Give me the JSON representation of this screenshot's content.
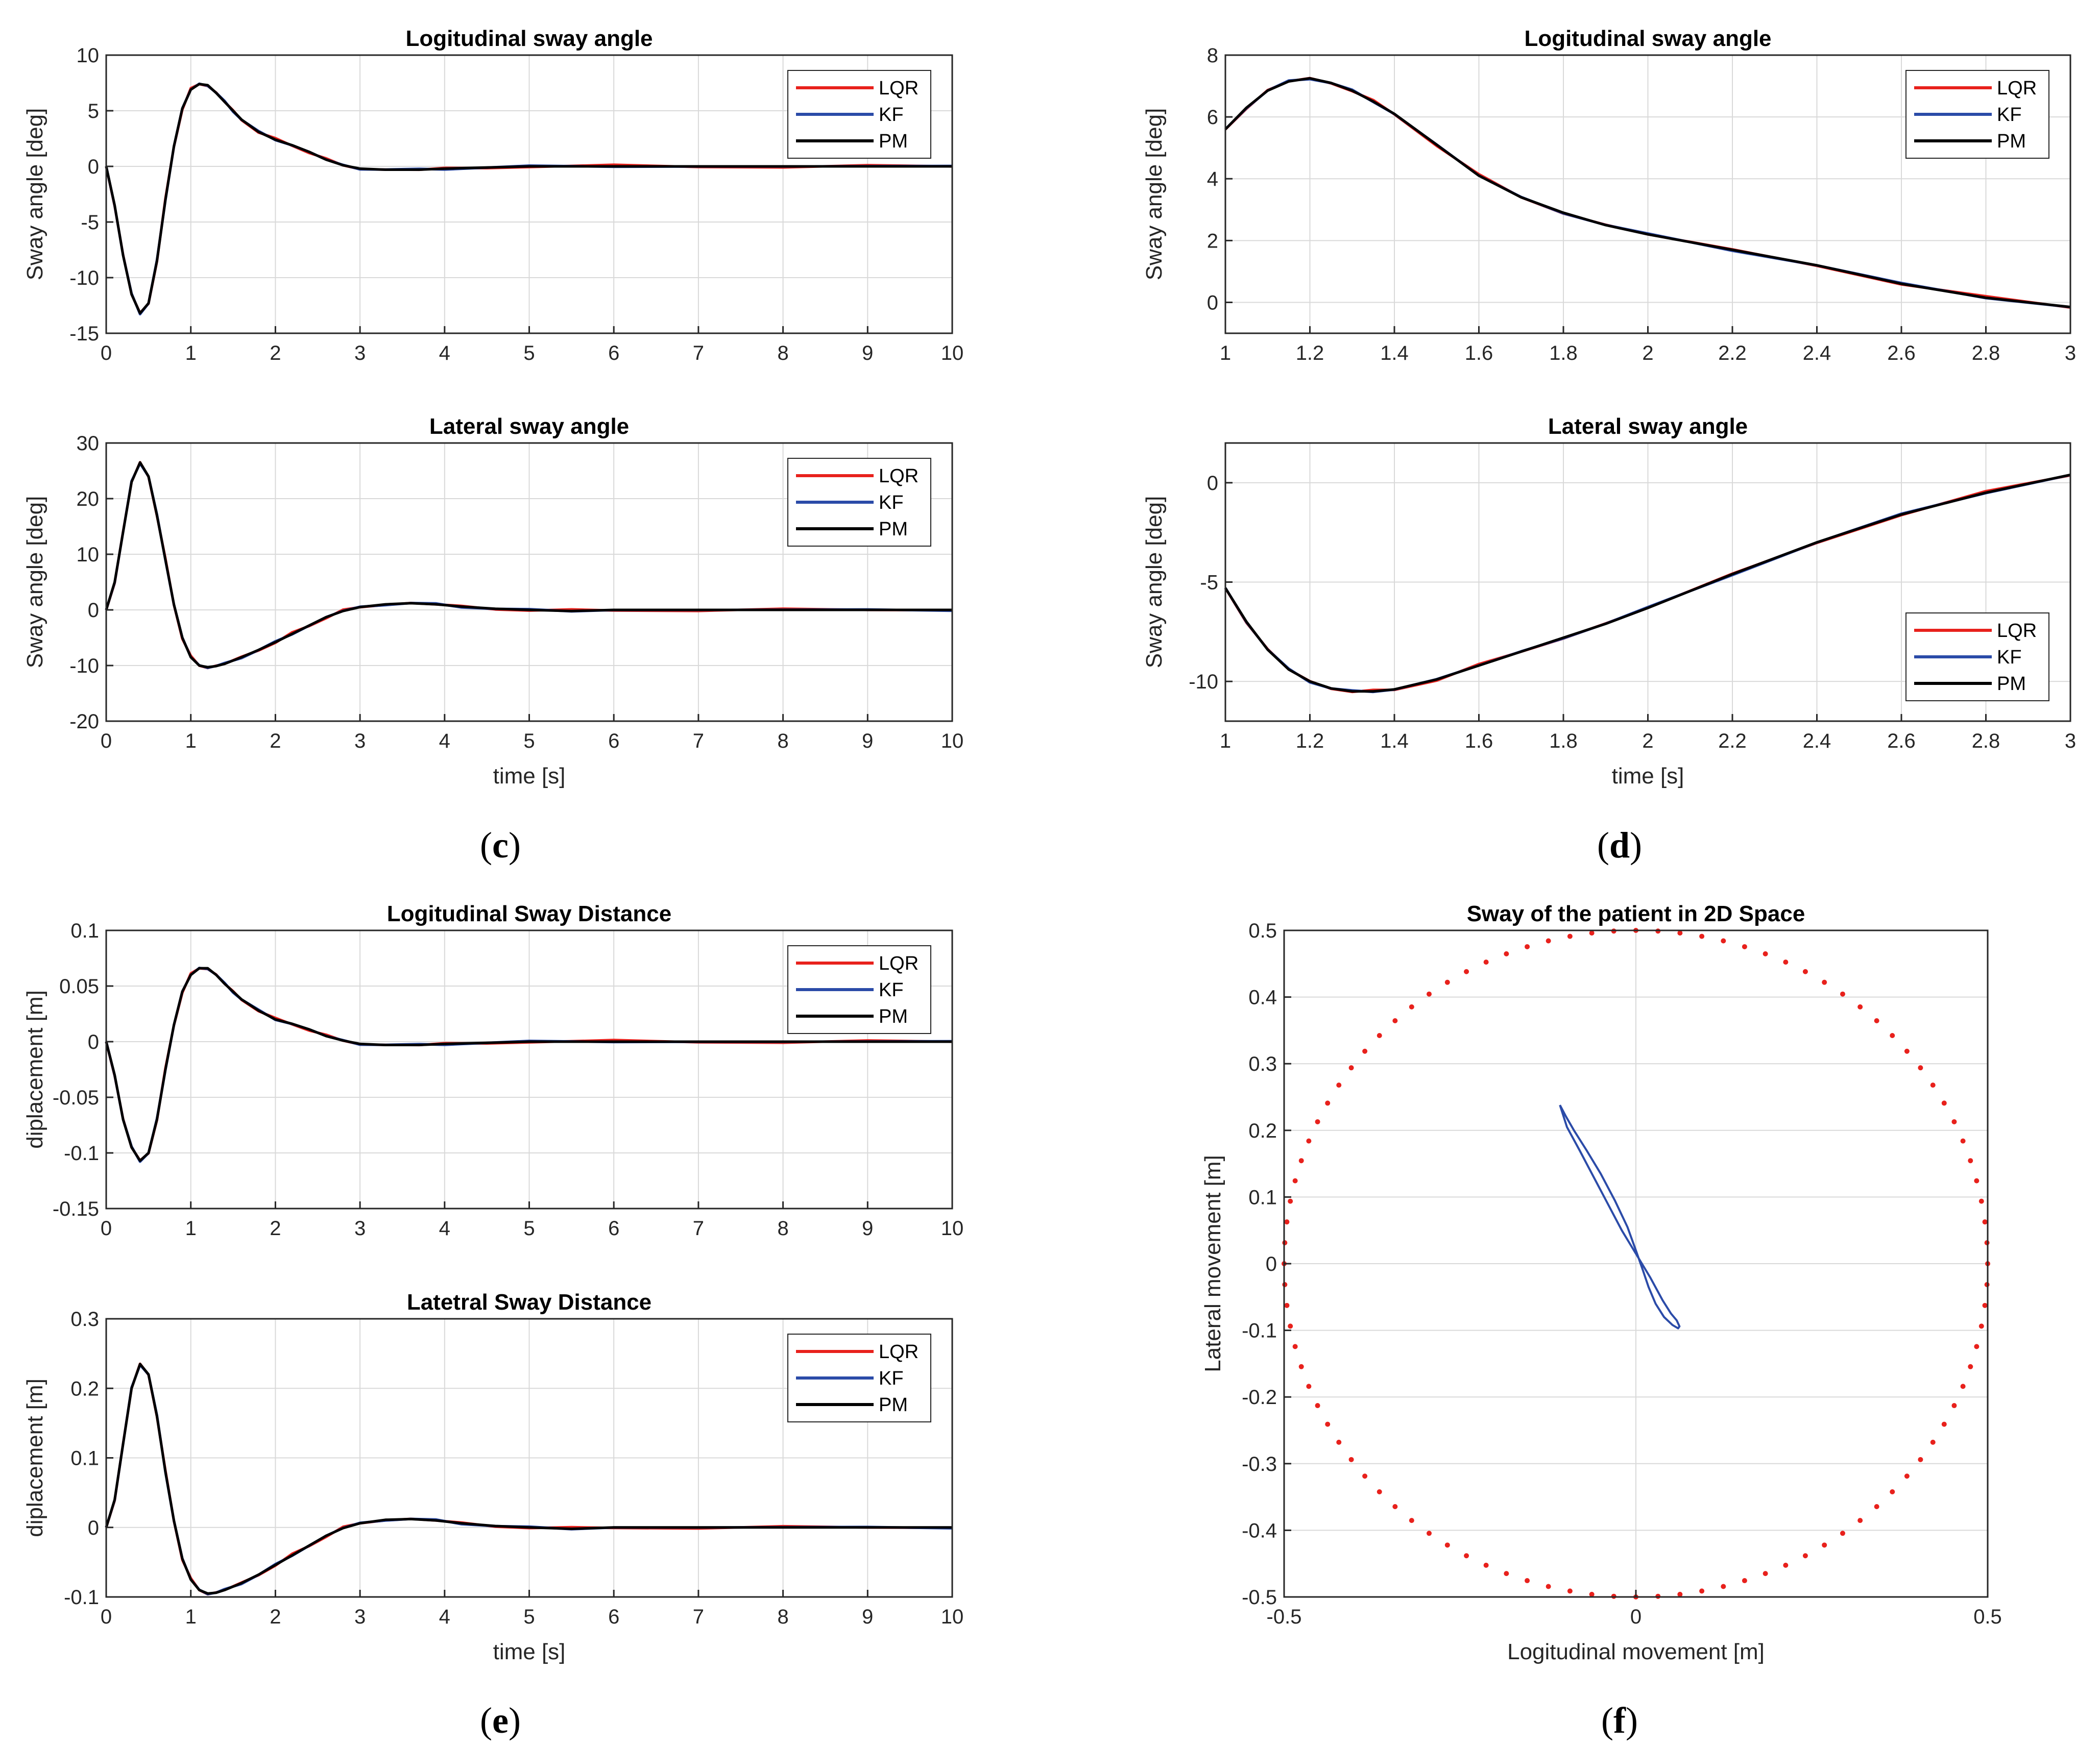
{
  "panel_captions": {
    "c": "c",
    "d": "d",
    "e": "e",
    "f": "f"
  },
  "legend_labels": [
    "LQR",
    "KF",
    "PM"
  ],
  "colors": {
    "LQR": "#e8211c",
    "KF": "#2b4ba8",
    "PM": "#000000",
    "grid": "#d9d9d9"
  },
  "chart_data": [
    {
      "id": "c1",
      "type": "line",
      "title": "Logitudinal sway angle",
      "xlabel": "",
      "ylabel": "Sway angle [deg]",
      "xlim": [
        0,
        10
      ],
      "ylim": [
        -15,
        10
      ],
      "xticks": [
        0,
        1,
        2,
        3,
        4,
        5,
        6,
        7,
        8,
        9,
        10
      ],
      "yticks": [
        -15,
        -10,
        -5,
        0,
        5,
        10
      ],
      "legend": "top-right",
      "grid": true,
      "x": [
        0,
        0.1,
        0.2,
        0.3,
        0.4,
        0.5,
        0.6,
        0.7,
        0.8,
        0.9,
        1.0,
        1.1,
        1.2,
        1.3,
        1.4,
        1.5,
        1.6,
        1.8,
        2.0,
        2.2,
        2.4,
        2.6,
        2.8,
        3.0,
        3.3,
        3.7,
        4.0,
        4.5,
        5,
        6,
        7,
        8,
        9,
        10
      ],
      "series": [
        {
          "name": "PM",
          "values": [
            0,
            -3.5,
            -8,
            -11.5,
            -13.2,
            -12.3,
            -8.5,
            -3,
            1.8,
            5.2,
            6.9,
            7.4,
            7.3,
            6.6,
            5.8,
            5.0,
            4.2,
            3.1,
            2.4,
            1.9,
            1.3,
            0.6,
            0.1,
            -0.2,
            -0.3,
            -0.3,
            -0.2,
            -0.1,
            0,
            0,
            0,
            0,
            0,
            0
          ]
        }
      ]
    },
    {
      "id": "c2",
      "type": "line",
      "title": "Lateral sway angle",
      "xlabel": "time [s]",
      "ylabel": "Sway angle [deg]",
      "xlim": [
        0,
        10
      ],
      "ylim": [
        -20,
        30
      ],
      "xticks": [
        0,
        1,
        2,
        3,
        4,
        5,
        6,
        7,
        8,
        9,
        10
      ],
      "yticks": [
        -20,
        -10,
        0,
        10,
        20,
        30
      ],
      "legend": "top-right",
      "grid": true,
      "x": [
        0,
        0.1,
        0.2,
        0.3,
        0.4,
        0.5,
        0.6,
        0.7,
        0.8,
        0.9,
        1.0,
        1.1,
        1.2,
        1.3,
        1.4,
        1.6,
        1.8,
        2.0,
        2.2,
        2.4,
        2.6,
        2.8,
        3.0,
        3.3,
        3.6,
        3.9,
        4.2,
        4.6,
        5.0,
        5.5,
        6,
        7,
        8,
        9,
        10
      ],
      "series": [
        {
          "name": "PM",
          "values": [
            0,
            5,
            14,
            23,
            26.5,
            24,
            17,
            9,
            1,
            -5,
            -8.5,
            -10,
            -10.3,
            -10.1,
            -9.7,
            -8.5,
            -7.2,
            -5.8,
            -4.3,
            -2.8,
            -1.3,
            -0.2,
            0.5,
            1.0,
            1.2,
            1.0,
            0.6,
            0.2,
            0,
            -0.2,
            0,
            0,
            0,
            0,
            0
          ]
        }
      ]
    },
    {
      "id": "d1",
      "type": "line",
      "title": "Logitudinal sway angle",
      "xlabel": "",
      "ylabel": "Sway angle [deg]",
      "xlim": [
        1,
        3
      ],
      "ylim": [
        -1,
        8
      ],
      "xticks": [
        1,
        1.2,
        1.4,
        1.6,
        1.8,
        2,
        2.2,
        2.4,
        2.6,
        2.8,
        3
      ],
      "yticks": [
        0,
        2,
        4,
        6,
        8
      ],
      "legend": "top-right",
      "grid": true,
      "x": [
        1.0,
        1.05,
        1.1,
        1.15,
        1.2,
        1.25,
        1.3,
        1.35,
        1.4,
        1.5,
        1.6,
        1.7,
        1.8,
        1.9,
        2.0,
        2.2,
        2.4,
        2.6,
        2.8,
        3.0
      ],
      "series": [
        {
          "name": "PM",
          "values": [
            5.6,
            6.3,
            6.85,
            7.15,
            7.25,
            7.1,
            6.85,
            6.5,
            6.1,
            5.1,
            4.1,
            3.4,
            2.9,
            2.5,
            2.2,
            1.7,
            1.2,
            0.6,
            0.15,
            -0.15
          ]
        }
      ]
    },
    {
      "id": "d2",
      "type": "line",
      "title": "Lateral sway angle",
      "xlabel": "time [s]",
      "ylabel": "Sway angle [deg]",
      "xlim": [
        1,
        3
      ],
      "ylim": [
        -12,
        2
      ],
      "xticks": [
        1,
        1.2,
        1.4,
        1.6,
        1.8,
        2,
        2.2,
        2.4,
        2.6,
        2.8,
        3
      ],
      "yticks": [
        -10,
        -5,
        0
      ],
      "legend": "bottom-right",
      "grid": true,
      "x": [
        1.0,
        1.05,
        1.1,
        1.15,
        1.2,
        1.25,
        1.3,
        1.35,
        1.4,
        1.5,
        1.6,
        1.7,
        1.8,
        1.9,
        2.0,
        2.2,
        2.4,
        2.6,
        2.8,
        3.0
      ],
      "series": [
        {
          "name": "PM",
          "values": [
            -5.3,
            -7.0,
            -8.4,
            -9.4,
            -10.0,
            -10.35,
            -10.5,
            -10.5,
            -10.4,
            -9.9,
            -9.2,
            -8.5,
            -7.8,
            -7.1,
            -6.3,
            -4.6,
            -3.0,
            -1.6,
            -0.5,
            0.4
          ]
        }
      ]
    },
    {
      "id": "e1",
      "type": "line",
      "title": "Logitudinal Sway Distance",
      "xlabel": "",
      "ylabel": "diplacement [m]",
      "xlim": [
        0,
        10
      ],
      "ylim": [
        -0.15,
        0.1
      ],
      "xticks": [
        0,
        1,
        2,
        3,
        4,
        5,
        6,
        7,
        8,
        9,
        10
      ],
      "yticks": [
        -0.15,
        -0.1,
        -0.05,
        0,
        0.05,
        0.1
      ],
      "legend": "top-right",
      "grid": true,
      "x": [
        0,
        0.1,
        0.2,
        0.3,
        0.4,
        0.5,
        0.6,
        0.7,
        0.8,
        0.9,
        1.0,
        1.1,
        1.2,
        1.3,
        1.4,
        1.5,
        1.6,
        1.8,
        2.0,
        2.2,
        2.4,
        2.6,
        2.8,
        3.0,
        3.3,
        3.7,
        4.0,
        4.5,
        5,
        6,
        7,
        8,
        9,
        10
      ],
      "series": [
        {
          "name": "PM",
          "values": [
            0,
            -0.03,
            -0.07,
            -0.095,
            -0.107,
            -0.1,
            -0.07,
            -0.025,
            0.015,
            0.045,
            0.06,
            0.066,
            0.066,
            0.06,
            0.052,
            0.045,
            0.038,
            0.028,
            0.02,
            0.016,
            0.011,
            0.005,
            0.001,
            -0.002,
            -0.003,
            -0.003,
            -0.002,
            -0.001,
            0,
            0,
            0,
            0,
            0,
            0
          ]
        }
      ]
    },
    {
      "id": "e2",
      "type": "line",
      "title": "Latetral Sway Distance",
      "xlabel": "time [s]",
      "ylabel": "diplacement [m]",
      "xlim": [
        0,
        10
      ],
      "ylim": [
        -0.1,
        0.3
      ],
      "xticks": [
        0,
        1,
        2,
        3,
        4,
        5,
        6,
        7,
        8,
        9,
        10
      ],
      "yticks": [
        -0.1,
        0,
        0.1,
        0.2,
        0.3
      ],
      "legend": "top-right",
      "grid": true,
      "x": [
        0,
        0.1,
        0.2,
        0.3,
        0.4,
        0.5,
        0.6,
        0.7,
        0.8,
        0.9,
        1.0,
        1.1,
        1.2,
        1.3,
        1.4,
        1.6,
        1.8,
        2.0,
        2.2,
        2.4,
        2.6,
        2.8,
        3.0,
        3.3,
        3.6,
        3.9,
        4.2,
        4.6,
        5.0,
        5.5,
        6,
        7,
        8,
        9,
        10
      ],
      "series": [
        {
          "name": "PM",
          "values": [
            0,
            0.04,
            0.12,
            0.2,
            0.235,
            0.22,
            0.16,
            0.08,
            0.01,
            -0.045,
            -0.075,
            -0.09,
            -0.095,
            -0.094,
            -0.09,
            -0.08,
            -0.068,
            -0.054,
            -0.04,
            -0.026,
            -0.012,
            -0.001,
            0.006,
            0.011,
            0.012,
            0.01,
            0.006,
            0.002,
            0,
            -0.002,
            0,
            0,
            0,
            0,
            0
          ]
        }
      ]
    },
    {
      "id": "f",
      "type": "scatter",
      "title": "Sway of the patient in 2D Space",
      "xlabel": "Logitudinal movement [m]",
      "ylabel": "Lateral movement [m]",
      "xlim": [
        -0.5,
        0.5
      ],
      "ylim": [
        -0.5,
        0.5
      ],
      "xticks": [
        -0.5,
        0,
        0.5
      ],
      "yticks": [
        -0.5,
        -0.4,
        -0.3,
        -0.2,
        -0.1,
        0,
        0.1,
        0.2,
        0.3,
        0.4,
        0.5
      ],
      "grid": true,
      "boundary_circle": {
        "radius": 0.5,
        "points": 100,
        "color": "#e8211c"
      },
      "trajectory": {
        "x": [
          -0.108,
          -0.098,
          -0.08,
          -0.06,
          -0.04,
          -0.02,
          0.0,
          0.02,
          0.038,
          0.05,
          0.058,
          0.062,
          0.06,
          0.052,
          0.04,
          0.028,
          0.018,
          0.01,
          0.0,
          -0.012,
          -0.03,
          -0.05,
          -0.07,
          -0.088,
          -0.1,
          -0.108
        ],
        "y": [
          0.238,
          0.205,
          0.17,
          0.13,
          0.09,
          0.05,
          0.015,
          -0.02,
          -0.055,
          -0.075,
          -0.085,
          -0.094,
          -0.097,
          -0.092,
          -0.08,
          -0.06,
          -0.035,
          -0.01,
          0.02,
          0.055,
          0.095,
          0.135,
          0.17,
          0.2,
          0.222,
          0.238
        ],
        "color": "#2b4ba8"
      }
    }
  ]
}
